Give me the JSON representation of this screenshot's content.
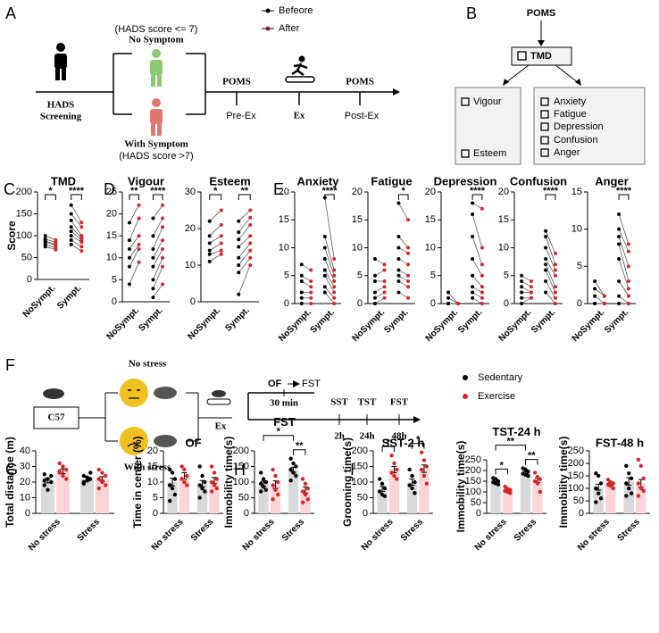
{
  "figure": {
    "panel_labels": [
      "A",
      "B",
      "C",
      "D",
      "E",
      "F",
      "G",
      "H",
      "I"
    ],
    "panel_a": {
      "hads": "HADS",
      "screening": "Screening",
      "no_symptom_criterion": "(HADS score <= 7)",
      "no_symptom": "No Symptom",
      "with_symptom": "With Symptom",
      "with_symptom_criterion": "(HADS score >7)",
      "poms_pre": "POMS",
      "pre_ex": "Pre-Ex",
      "ex": "Ex",
      "poms_post": "POMS",
      "post_ex": "Post-Ex",
      "legend": [
        "Befeore",
        "After"
      ]
    },
    "panel_b": {
      "root": "POMS",
      "tmd": "TMD",
      "left": [
        "Vigour",
        "Esteem"
      ],
      "right": [
        "Anxiety",
        "Fatigue",
        "Depression",
        "Confusion",
        "Anger"
      ]
    },
    "panel_f": {
      "strain": "C57",
      "no_stress": "No stress",
      "with_stress": "With stress",
      "ex": "Ex",
      "of": "OF",
      "fst": "FST",
      "interval": "30 min",
      "tests": [
        "SST",
        "TST",
        "FST"
      ],
      "times": [
        "2h",
        "24h",
        "48h"
      ],
      "legend": [
        "Sedentary",
        "Exercise"
      ]
    }
  },
  "chart_data": [
    {
      "type": "paired",
      "title": "TMD",
      "ylabel": "Score",
      "ylim": [
        0,
        200
      ],
      "yticks": [
        0,
        50,
        100,
        150,
        200
      ],
      "before_color": "#000000",
      "after_color": "#d62728",
      "significance": [
        "*",
        "****"
      ],
      "groups": [
        {
          "label": "NoSympt.",
          "before": [
            100,
            92,
            88,
            85,
            80,
            75
          ],
          "after": [
            90,
            85,
            80,
            78,
            72,
            68
          ]
        },
        {
          "label": "Sympt.",
          "before": [
            170,
            150,
            135,
            120,
            110,
            100,
            90,
            80
          ],
          "after": [
            130,
            120,
            100,
            95,
            90,
            85,
            75,
            65
          ]
        }
      ]
    },
    {
      "type": "paired",
      "title": "Vigour",
      "ylim": [
        0,
        25
      ],
      "yticks": [
        0,
        5,
        10,
        15,
        20,
        25
      ],
      "before_color": "#000000",
      "after_color": "#d62728",
      "significance": [
        "**",
        "****"
      ],
      "groups": [
        {
          "label": "NoSympt.",
          "before": [
            18,
            14,
            12,
            10,
            8,
            4
          ],
          "after": [
            22,
            19,
            15,
            13,
            12,
            9
          ]
        },
        {
          "label": "Sympt.",
          "before": [
            19,
            15,
            12,
            10,
            8,
            5,
            3,
            1
          ],
          "after": [
            22,
            19,
            17,
            14,
            12,
            10,
            8,
            4
          ]
        }
      ]
    },
    {
      "type": "paired",
      "title": "Esteem",
      "ylim": [
        0,
        30
      ],
      "yticks": [
        0,
        10,
        20,
        30
      ],
      "before_color": "#000000",
      "after_color": "#d62728",
      "significance": [
        "*",
        "**"
      ],
      "groups": [
        {
          "label": "NoSympt.",
          "before": [
            22,
            18,
            16,
            14,
            13,
            11
          ],
          "after": [
            25,
            21,
            18,
            16,
            14,
            13
          ]
        },
        {
          "label": "Sympt.",
          "before": [
            22,
            19,
            17,
            15,
            12,
            10,
            8,
            2
          ],
          "after": [
            25,
            23,
            21,
            18,
            16,
            14,
            12,
            10
          ]
        }
      ]
    },
    {
      "type": "paired",
      "title": "Anxiety",
      "ylim": [
        0,
        20
      ],
      "yticks": [
        0,
        5,
        10,
        15,
        20
      ],
      "before_color": "#000000",
      "after_color": "#d62728",
      "significance": [
        null,
        "****"
      ],
      "groups": [
        {
          "label": "NoSympt.",
          "before": [
            7,
            5,
            4,
            2,
            1,
            0
          ],
          "after": [
            6,
            4,
            3,
            2,
            1,
            0
          ]
        },
        {
          "label": "Sympt.",
          "before": [
            19,
            12,
            10,
            8,
            6,
            5,
            3,
            2
          ],
          "after": [
            8,
            6,
            5,
            4,
            3,
            2,
            1,
            0
          ]
        }
      ]
    },
    {
      "type": "paired",
      "title": "Fatigue",
      "ylim": [
        0,
        20
      ],
      "yticks": [
        0,
        5,
        10,
        15,
        20
      ],
      "before_color": "#000000",
      "after_color": "#d62728",
      "significance": [
        null,
        "*"
      ],
      "groups": [
        {
          "label": "NoSympt.",
          "before": [
            8,
            5,
            4,
            2,
            1,
            0
          ],
          "after": [
            7,
            6,
            4,
            3,
            2,
            1
          ]
        },
        {
          "label": "Sympt.",
          "before": [
            18,
            12,
            10,
            8,
            6,
            5,
            4,
            2
          ],
          "after": [
            15,
            10,
            9,
            7,
            5,
            4,
            3,
            1
          ]
        }
      ]
    },
    {
      "type": "paired",
      "title": "Depression",
      "ylim": [
        0,
        20
      ],
      "yticks": [
        0,
        5,
        10,
        15,
        20
      ],
      "before_color": "#000000",
      "after_color": "#d62728",
      "significance": [
        null,
        "****"
      ],
      "groups": [
        {
          "label": "NoSympt.",
          "before": [
            2,
            1,
            0,
            0,
            0,
            0
          ],
          "after": [
            0,
            0,
            0,
            0,
            0,
            0
          ]
        },
        {
          "label": "Sympt.",
          "before": [
            18,
            16,
            12,
            8,
            5,
            3,
            2,
            1
          ],
          "after": [
            17,
            10,
            7,
            5,
            3,
            2,
            1,
            0
          ]
        }
      ]
    },
    {
      "type": "paired",
      "title": "Confusion",
      "ylim": [
        0,
        20
      ],
      "yticks": [
        0,
        5,
        10,
        15,
        20
      ],
      "before_color": "#000000",
      "after_color": "#d62728",
      "significance": [
        null,
        "****"
      ],
      "groups": [
        {
          "label": "NoSympt.",
          "before": [
            5,
            4,
            3,
            2,
            1,
            0
          ],
          "after": [
            4,
            3,
            2,
            2,
            1,
            1
          ]
        },
        {
          "label": "Sympt.",
          "before": [
            13,
            12,
            10,
            8,
            7,
            6,
            4,
            2
          ],
          "after": [
            9,
            7,
            6,
            5,
            3,
            2,
            1,
            0
          ]
        }
      ]
    },
    {
      "type": "paired",
      "title": "Anger",
      "ylim": [
        0,
        15
      ],
      "yticks": [
        0,
        5,
        10,
        15
      ],
      "before_color": "#000000",
      "after_color": "#d62728",
      "significance": [
        null,
        "****"
      ],
      "groups": [
        {
          "label": "NoSympt.",
          "before": [
            3,
            2,
            1,
            0,
            0,
            0
          ],
          "after": [
            1,
            1,
            0,
            0,
            0,
            0
          ]
        },
        {
          "label": "Sympt.",
          "before": [
            12,
            10,
            9,
            8,
            6,
            3,
            1,
            0
          ],
          "after": [
            8,
            7,
            5,
            3,
            2,
            1,
            0,
            0
          ]
        }
      ]
    },
    {
      "type": "bar-dots",
      "ylabel": "Total distance (m)",
      "categories": [
        "No stress",
        "Stress"
      ],
      "ylim": [
        0,
        40
      ],
      "yticks": [
        0,
        10,
        20,
        30,
        40
      ],
      "series": [
        {
          "bar_color": "#d9d9d9",
          "point_color": "#000000",
          "values": [
            21,
            22
          ],
          "errors": [
            1.5,
            1.3
          ],
          "points": [
            [
              25,
              22,
              20,
              18,
              15,
              24,
              21
            ],
            [
              24,
              23,
              22,
              19,
              21,
              26,
              20
            ]
          ]
        },
        {
          "bar_color": "#fbd5d5",
          "point_color": "#d62728",
          "values": [
            27,
            22
          ],
          "errors": [
            1.5,
            1.5
          ],
          "points": [
            [
              32,
              30,
              28,
              26,
              24,
              22,
              27
            ],
            [
              28,
              26,
              24,
              22,
              20,
              18,
              16,
              21
            ]
          ]
        }
      ]
    },
    {
      "type": "bar-dots",
      "title": "OF",
      "ylabel": "Time in center (%)",
      "categories": [
        "No stress",
        "Stress"
      ],
      "ylim": [
        0,
        20
      ],
      "yticks": [
        0,
        5,
        10,
        15,
        20
      ],
      "series": [
        {
          "bar_color": "#d9d9d9",
          "point_color": "#000000",
          "values": [
            10,
            9.5
          ],
          "errors": [
            1.2,
            1
          ],
          "points": [
            [
              14,
              13,
              11,
              9,
              8,
              6,
              4
            ],
            [
              15,
              12,
              10,
              9,
              8,
              7,
              5
            ]
          ]
        },
        {
          "bar_color": "#fbd5d5",
          "point_color": "#d62728",
          "values": [
            12,
            10.5
          ],
          "errors": [
            1,
            1
          ],
          "points": [
            [
              15,
              14,
              12,
              11,
              10,
              9
            ],
            [
              15,
              13,
              11,
              10,
              9,
              8,
              7
            ]
          ]
        }
      ]
    },
    {
      "type": "bar-dots",
      "title": "FST",
      "ylabel": "Immobility time(s)",
      "categories": [
        "No stress",
        "Stress"
      ],
      "ylim": [
        0,
        200
      ],
      "yticks": [
        0,
        50,
        100,
        150,
        200
      ],
      "within": [
        null,
        "**"
      ],
      "across": "*",
      "series": [
        {
          "bar_color": "#d9d9d9",
          "point_color": "#000000",
          "values": [
            95,
            140
          ],
          "errors": [
            8,
            8
          ],
          "points": [
            [
              130,
              110,
              100,
              95,
              85,
              75,
              70
            ],
            [
              175,
              160,
              150,
              140,
              130,
              120,
              105
            ]
          ]
        },
        {
          "bar_color": "#fbd5d5",
          "point_color": "#d62728",
          "values": [
            92,
            75
          ],
          "errors": [
            12,
            10
          ],
          "points": [
            [
              140,
              120,
              100,
              90,
              75,
              60,
              45
            ],
            [
              110,
              95,
              80,
              70,
              60,
              45,
              35
            ]
          ]
        }
      ]
    },
    {
      "type": "bar-dots",
      "title": "SST-2 h",
      "ylabel": "Grooming time(s)",
      "categories": [
        "No stress",
        "Stress"
      ],
      "ylim": [
        0,
        200
      ],
      "yticks": [
        0,
        50,
        100,
        150,
        200
      ],
      "within": [
        "*",
        "*"
      ],
      "series": [
        {
          "bar_color": "#d9d9d9",
          "point_color": "#000000",
          "values": [
            78,
            100
          ],
          "errors": [
            8,
            10
          ],
          "points": [
            [
              110,
              95,
              80,
              70,
              60,
              55
            ],
            [
              140,
              120,
              100,
              90,
              80,
              65
            ]
          ]
        },
        {
          "bar_color": "#fbd5d5",
          "point_color": "#d62728",
          "values": [
            140,
            143
          ],
          "errors": [
            10,
            12
          ],
          "points": [
            [
              185,
              160,
              140,
              130,
              120,
              110
            ],
            [
              195,
              170,
              150,
              140,
              120,
              95
            ]
          ]
        }
      ]
    },
    {
      "type": "bar-dots",
      "title": "TST-24 h",
      "ylabel": "Immobility time(s)",
      "categories": [
        "No stress",
        "Stress"
      ],
      "ylim": [
        0,
        250
      ],
      "yticks": [
        0,
        50,
        100,
        150,
        200,
        250
      ],
      "within": [
        "*",
        "**"
      ],
      "across": "**",
      "series": [
        {
          "bar_color": "#d9d9d9",
          "point_color": "#000000",
          "values": [
            150,
            190
          ],
          "errors": [
            5,
            5
          ],
          "points": [
            [
              165,
              160,
              150,
              145,
              140,
              135
            ],
            [
              210,
              205,
              195,
              185,
              180,
              175
            ]
          ]
        },
        {
          "bar_color": "#fbd5d5",
          "point_color": "#d62728",
          "values": [
            110,
            155
          ],
          "errors": [
            5,
            10
          ],
          "points": [
            [
              125,
              115,
              110,
              105,
              100,
              95
            ],
            [
              190,
              170,
              160,
              150,
              140,
              100
            ]
          ]
        }
      ]
    },
    {
      "type": "bar-dots",
      "title": "FST-48 h",
      "ylabel": "Immobility time(s)",
      "categories": [
        "No stress",
        "Stress"
      ],
      "ylim": [
        0,
        250
      ],
      "yticks": [
        0,
        50,
        100,
        150,
        200,
        250
      ],
      "series": [
        {
          "bar_color": "#d9d9d9",
          "point_color": "#000000",
          "values": [
            105,
            128
          ],
          "errors": [
            12,
            15
          ],
          "points": [
            [
              160,
              150,
              120,
              100,
              80,
              60,
              45
            ],
            [
              190,
              160,
              140,
              120,
              100,
              80,
              70
            ]
          ]
        },
        {
          "bar_color": "#fbd5d5",
          "point_color": "#d62728",
          "values": [
            118,
            120
          ],
          "errors": [
            5,
            15
          ],
          "points": [
            [
              135,
              125,
              120,
              115,
              110,
              100
            ],
            [
              215,
              190,
              140,
              120,
              100,
              90,
              70
            ]
          ]
        }
      ]
    }
  ]
}
